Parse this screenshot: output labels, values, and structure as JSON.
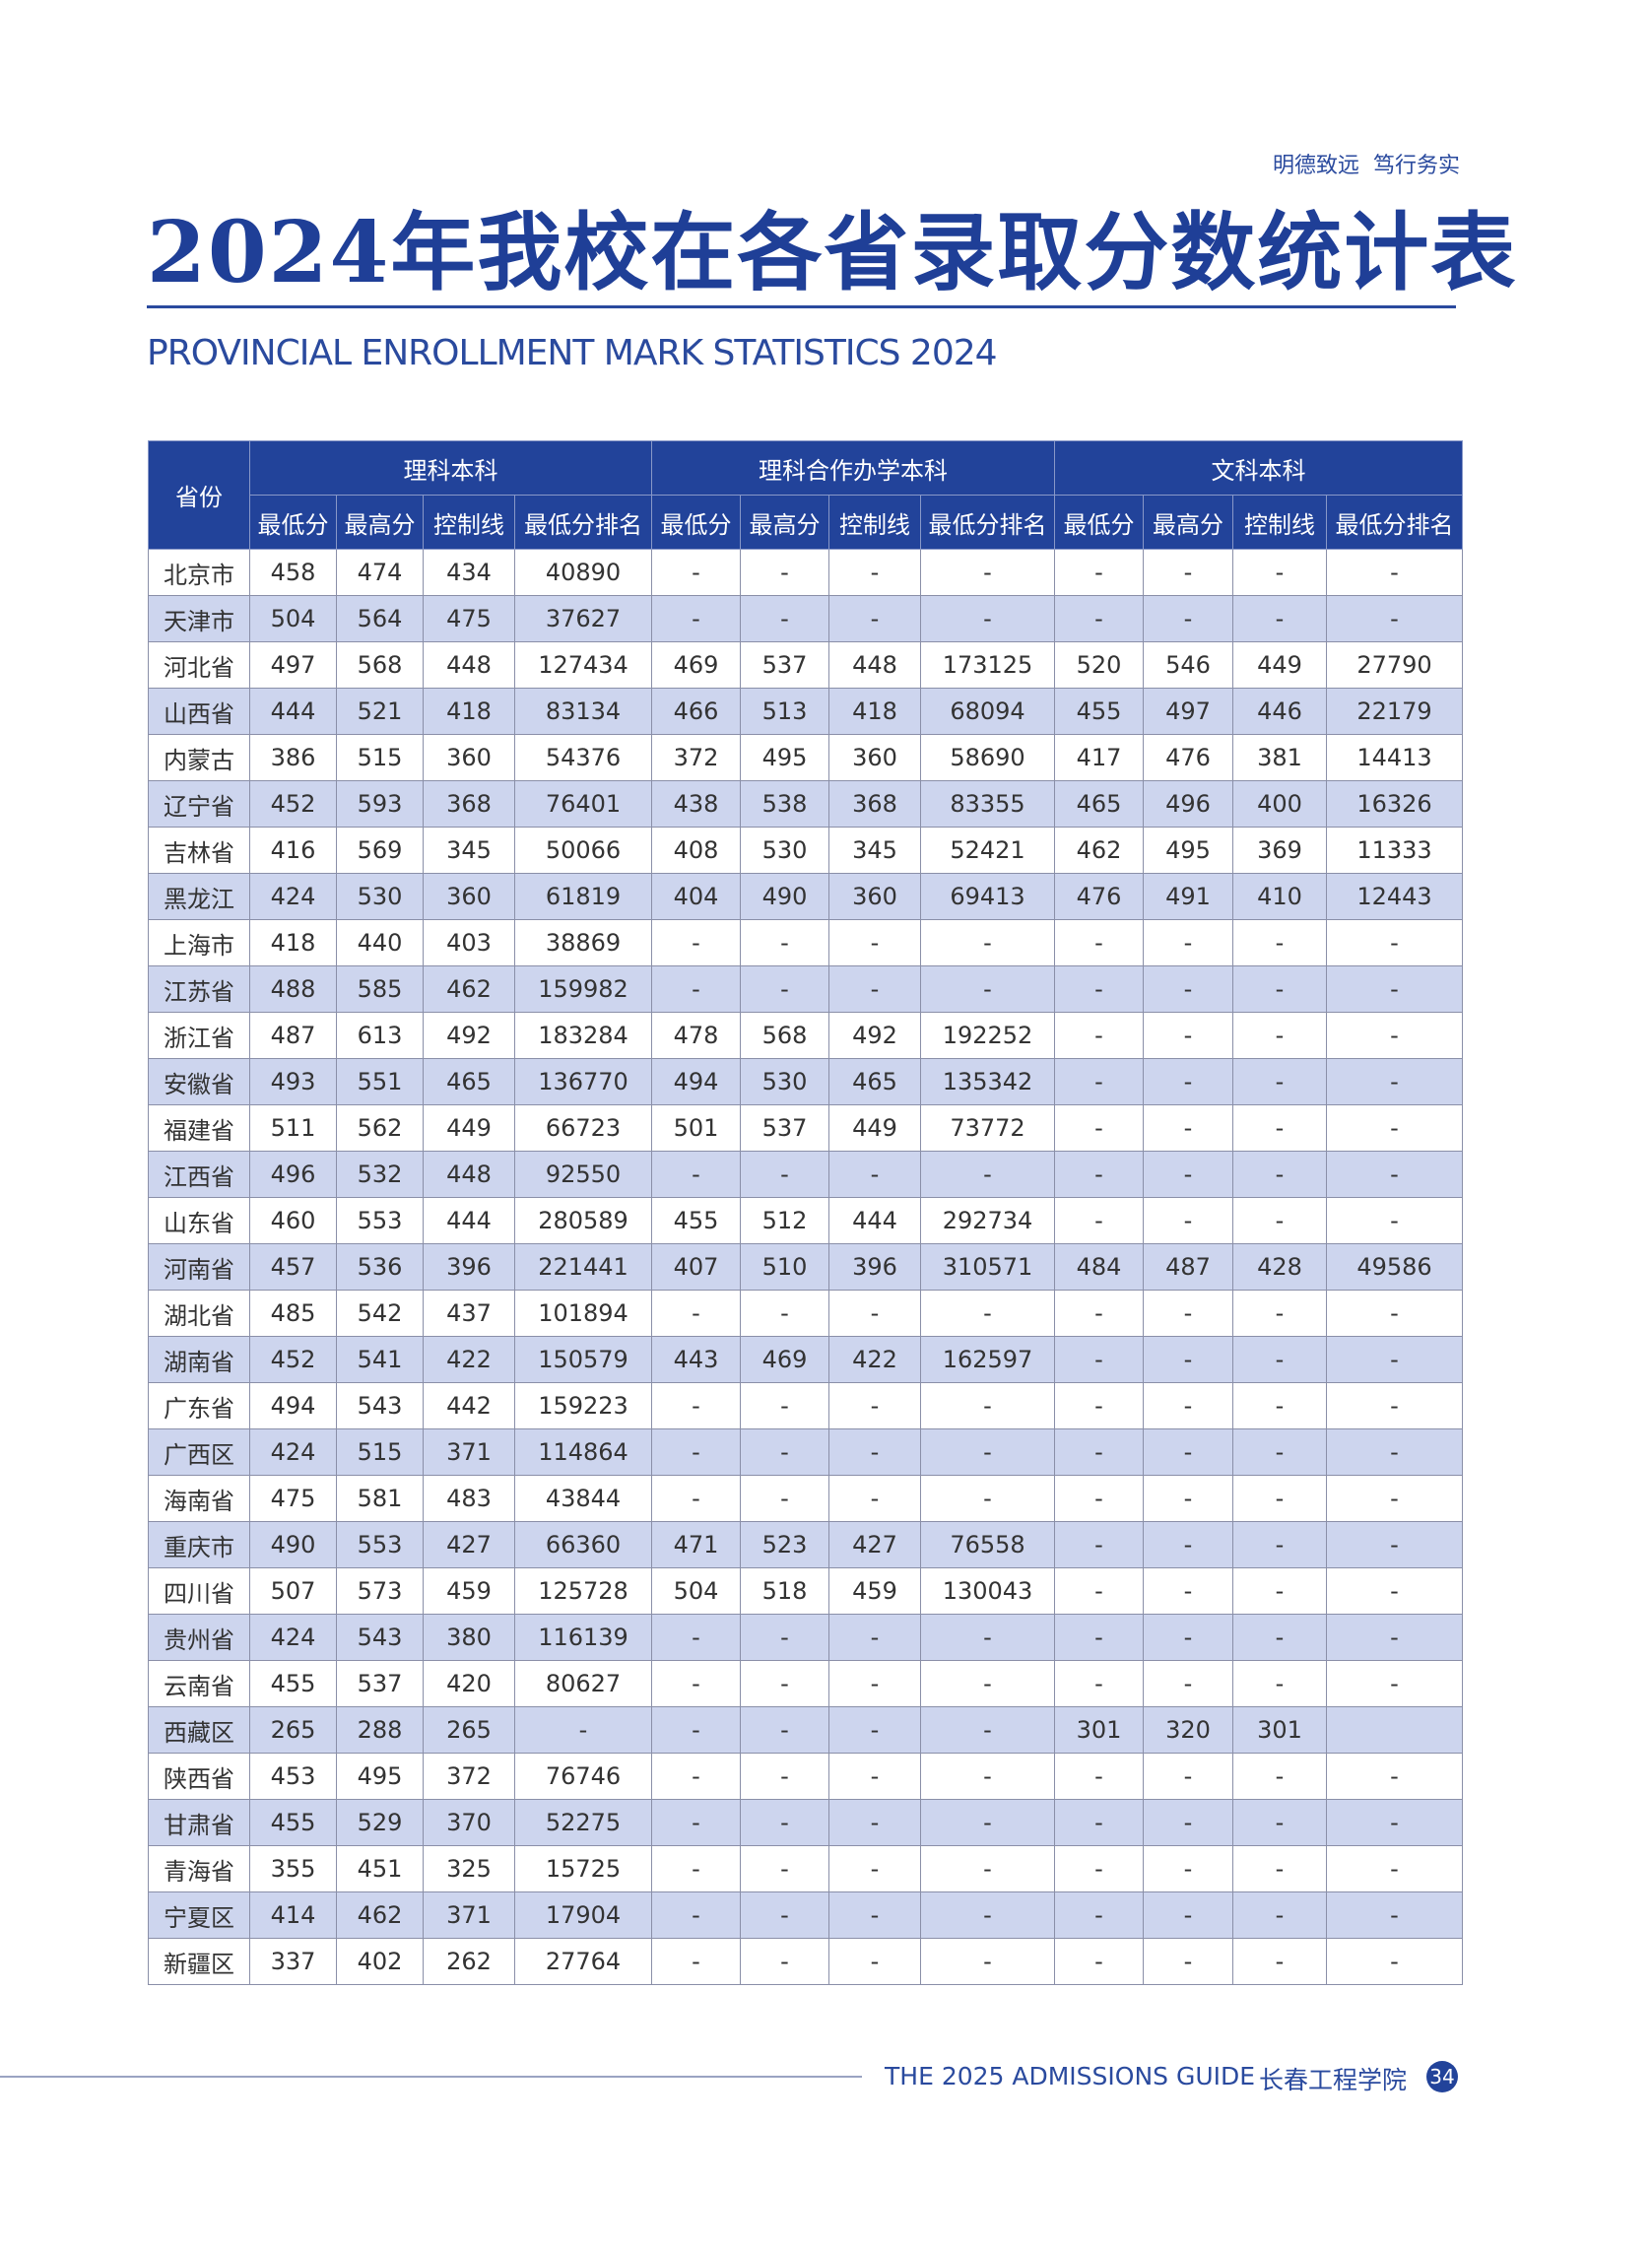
{
  "header": {
    "slogan": "明德致远  笃行务实",
    "title": "2024年我校在各省录取分数统计表",
    "subtitle": "PROVINCIAL ENROLLMENT MARK STATISTICS 2024"
  },
  "table": {
    "group_headers": [
      "省份",
      "理科本科",
      "理科合作办学本科",
      "文科本科"
    ],
    "columns": [
      "最低分",
      "最高分",
      "控制线",
      "最低分排名",
      "最低分",
      "最高分",
      "控制线",
      "最低分排名",
      "最低分",
      "最高分",
      "控制线",
      "最低分排名"
    ],
    "rows": [
      [
        "北京市",
        458,
        474,
        434,
        40890,
        "-",
        "-",
        "-",
        "-",
        "-",
        "-",
        "-",
        "-"
      ],
      [
        "天津市",
        504,
        564,
        475,
        37627,
        "-",
        "-",
        "-",
        "-",
        "-",
        "-",
        "-",
        "-"
      ],
      [
        "河北省",
        497,
        568,
        448,
        127434,
        469,
        537,
        448,
        173125,
        520,
        546,
        449,
        27790
      ],
      [
        "山西省",
        444,
        521,
        418,
        83134,
        466,
        513,
        418,
        68094,
        455,
        497,
        446,
        22179
      ],
      [
        "内蒙古",
        386,
        515,
        360,
        54376,
        372,
        495,
        360,
        58690,
        417,
        476,
        381,
        14413
      ],
      [
        "辽宁省",
        452,
        593,
        368,
        76401,
        438,
        538,
        368,
        83355,
        465,
        496,
        400,
        16326
      ],
      [
        "吉林省",
        416,
        569,
        345,
        50066,
        408,
        530,
        345,
        52421,
        462,
        495,
        369,
        11333
      ],
      [
        "黑龙江",
        424,
        530,
        360,
        61819,
        404,
        490,
        360,
        69413,
        476,
        491,
        410,
        12443
      ],
      [
        "上海市",
        418,
        440,
        403,
        38869,
        "-",
        "-",
        "-",
        "-",
        "-",
        "-",
        "-",
        "-"
      ],
      [
        "江苏省",
        488,
        585,
        462,
        159982,
        "-",
        "-",
        "-",
        "-",
        "-",
        "-",
        "-",
        "-"
      ],
      [
        "浙江省",
        487,
        613,
        492,
        183284,
        478,
        568,
        492,
        192252,
        "-",
        "-",
        "-",
        "-"
      ],
      [
        "安徽省",
        493,
        551,
        465,
        136770,
        494,
        530,
        465,
        135342,
        "-",
        "-",
        "-",
        "-"
      ],
      [
        "福建省",
        511,
        562,
        449,
        66723,
        501,
        537,
        449,
        73772,
        "-",
        "-",
        "-",
        "-"
      ],
      [
        "江西省",
        496,
        532,
        448,
        92550,
        "-",
        "-",
        "-",
        "-",
        "-",
        "-",
        "-",
        "-"
      ],
      [
        "山东省",
        460,
        553,
        444,
        280589,
        455,
        512,
        444,
        292734,
        "-",
        "-",
        "-",
        "-"
      ],
      [
        "河南省",
        457,
        536,
        396,
        221441,
        407,
        510,
        396,
        310571,
        484,
        487,
        428,
        49586
      ],
      [
        "湖北省",
        485,
        542,
        437,
        101894,
        "-",
        "-",
        "-",
        "-",
        "-",
        "-",
        "-",
        "-"
      ],
      [
        "湖南省",
        452,
        541,
        422,
        150579,
        443,
        469,
        422,
        162597,
        "-",
        "-",
        "-",
        "-"
      ],
      [
        "广东省",
        494,
        543,
        442,
        159223,
        "-",
        "-",
        "-",
        "-",
        "-",
        "-",
        "-",
        "-"
      ],
      [
        "广西区",
        424,
        515,
        371,
        114864,
        "-",
        "-",
        "-",
        "-",
        "-",
        "-",
        "-",
        "-"
      ],
      [
        "海南省",
        475,
        581,
        483,
        43844,
        "-",
        "-",
        "-",
        "-",
        "-",
        "-",
        "-",
        "-"
      ],
      [
        "重庆市",
        490,
        553,
        427,
        66360,
        471,
        523,
        427,
        76558,
        "-",
        "-",
        "-",
        "-"
      ],
      [
        "四川省",
        507,
        573,
        459,
        125728,
        504,
        518,
        459,
        130043,
        "-",
        "-",
        "-",
        "-"
      ],
      [
        "贵州省",
        424,
        543,
        380,
        116139,
        "-",
        "-",
        "-",
        "-",
        "-",
        "-",
        "-",
        "-"
      ],
      [
        "云南省",
        455,
        537,
        420,
        80627,
        "-",
        "-",
        "-",
        "-",
        "-",
        "-",
        "-",
        "-"
      ],
      [
        "西藏区",
        265,
        288,
        265,
        "-",
        "-",
        "-",
        "-",
        "-",
        301,
        320,
        301,
        null
      ],
      [
        "陕西省",
        453,
        495,
        372,
        76746,
        "-",
        "-",
        "-",
        "-",
        "-",
        "-",
        "-",
        "-"
      ],
      [
        "甘肃省",
        455,
        529,
        370,
        52275,
        "-",
        "-",
        "-",
        "-",
        "-",
        "-",
        "-",
        "-"
      ],
      [
        "青海省",
        355,
        451,
        325,
        15725,
        "-",
        "-",
        "-",
        "-",
        "-",
        "-",
        "-",
        "-"
      ],
      [
        "宁夏区",
        414,
        462,
        371,
        17904,
        "-",
        "-",
        "-",
        "-",
        "-",
        "-",
        "-",
        "-"
      ],
      [
        "新疆区",
        337,
        402,
        262,
        27764,
        "-",
        "-",
        "-",
        "-",
        "-",
        "-",
        "-",
        "-"
      ]
    ]
  },
  "footer": {
    "guide": "THE 2025 ADMISSIONS GUIDE",
    "school": "长春工程学院",
    "page": 34
  }
}
